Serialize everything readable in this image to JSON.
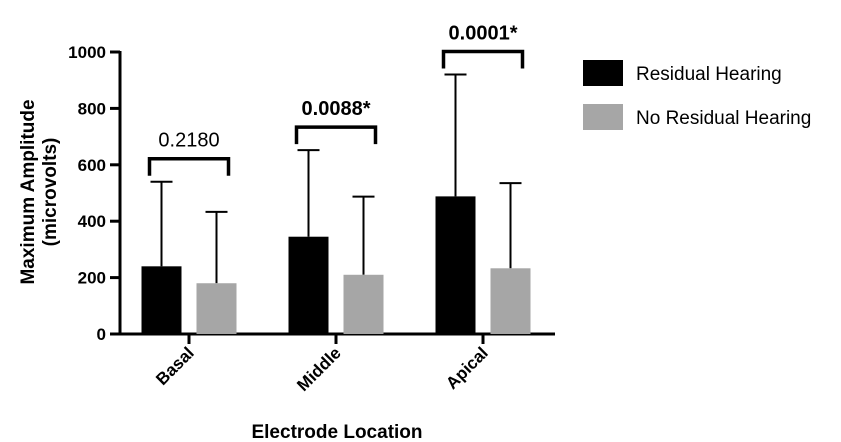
{
  "chart_data": {
    "type": "bar",
    "title": "",
    "xlabel": "Electrode Location",
    "ylabel": "Maximum Amplitude (microvolts)",
    "ylabel_lines": [
      "Maximum Amplitude",
      "(microvolts)"
    ],
    "ylim": [
      0,
      1000
    ],
    "yticks": [
      "0",
      "200",
      "400",
      "600",
      "800",
      "1000"
    ],
    "categories": [
      "Basal",
      "Middle",
      "Apical"
    ],
    "series": [
      {
        "name": "Residual Hearing",
        "color": "#000000",
        "values": [
          240,
          345,
          488
        ],
        "error_upper": [
          540,
          652,
          920
        ]
      },
      {
        "name": "No Residual Hearing",
        "color": "#a6a6a6",
        "values": [
          180,
          210,
          233
        ],
        "error_upper": [
          433,
          487,
          535
        ]
      }
    ],
    "significance": [
      {
        "label": "0.2180",
        "significant": false
      },
      {
        "label": "0.0088*",
        "significant": true
      },
      {
        "label": "0.0001*",
        "significant": true
      }
    ],
    "legend_position": "top-right",
    "grid": false
  }
}
